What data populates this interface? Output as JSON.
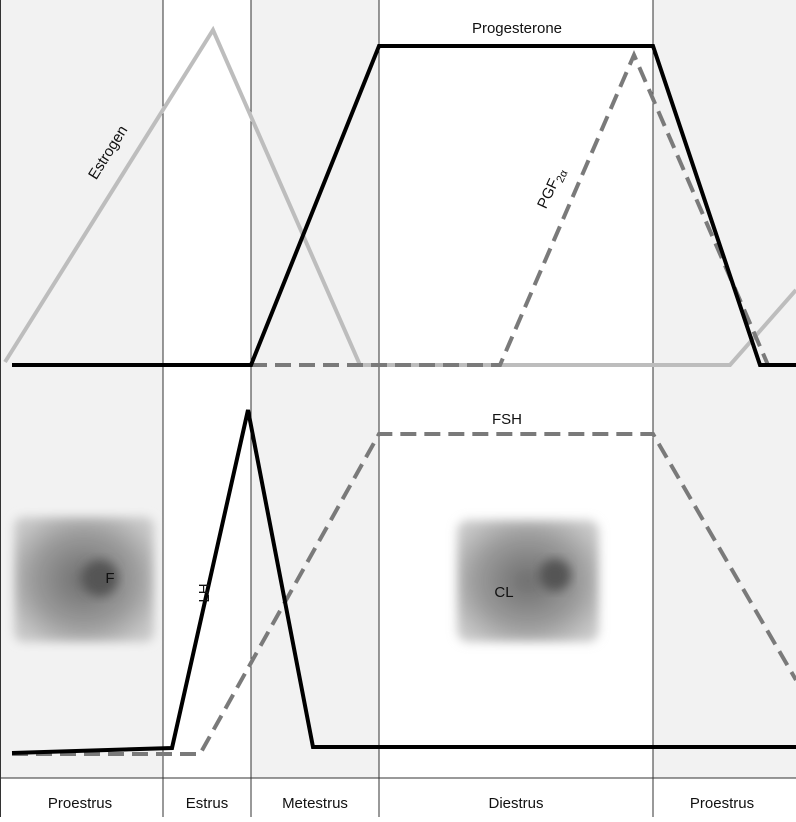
{
  "hormones": {
    "estrogen": "Estrogen",
    "progesterone": "Progesterone",
    "pgf": {
      "text": "PGF",
      "subscript": "2α"
    },
    "fsh": "FSH",
    "lh": "LH"
  },
  "images": {
    "follicle": "F",
    "corpus_luteum": "CL"
  },
  "phases": [
    "Proestrus",
    "Estrus",
    "Metestrus",
    "Diestrus",
    "Proestrus"
  ]
}
